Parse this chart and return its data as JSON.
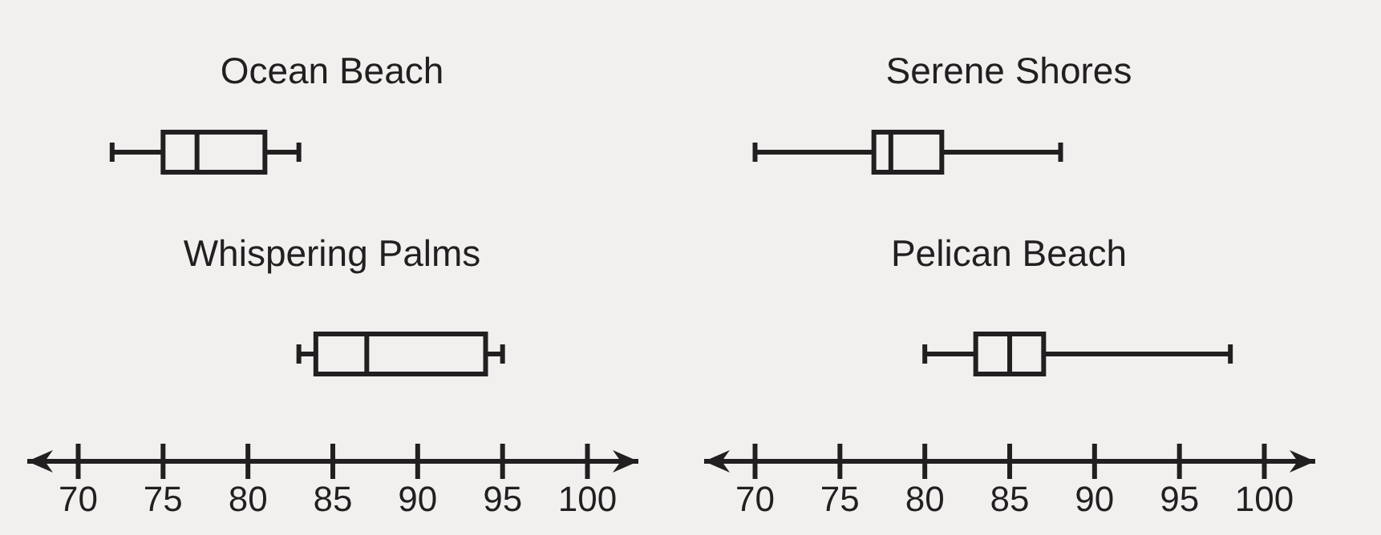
{
  "chart_data": [
    {
      "type": "box",
      "orientation": "horizontal",
      "color": "#231f20",
      "categories": [
        "Ocean Beach",
        "Whispering Palms"
      ],
      "boxes": [
        {
          "low": 72,
          "q1": 75,
          "median": 77,
          "q3": 81,
          "high": 83
        },
        {
          "low": 83,
          "q1": 84,
          "median": 87,
          "q3": 94,
          "high": 95
        }
      ],
      "xlim": [
        67,
        103
      ],
      "xticks": [
        70,
        75,
        80,
        85,
        90,
        95,
        100
      ]
    },
    {
      "type": "box",
      "orientation": "horizontal",
      "color": "#231f20",
      "categories": [
        "Serene Shores",
        "Pelican Beach"
      ],
      "boxes": [
        {
          "low": 70,
          "q1": 77,
          "median": 78,
          "q3": 81,
          "high": 88
        },
        {
          "low": 80,
          "q1": 83,
          "median": 85,
          "q3": 87,
          "high": 98
        }
      ],
      "xlim": [
        67,
        103
      ],
      "xticks": [
        70,
        75,
        80,
        85,
        90,
        95,
        100
      ]
    }
  ]
}
